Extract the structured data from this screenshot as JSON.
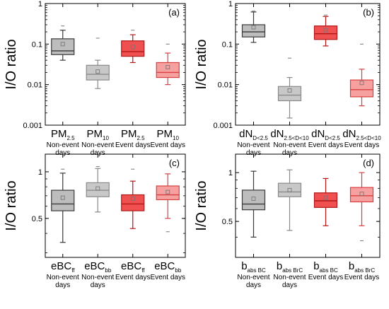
{
  "colors": {
    "gray_dark_fill": "#bdbdbd",
    "gray_dark_stroke": "#3a3a3a",
    "gray_light_fill": "#c8c8c8",
    "gray_light_stroke": "#8a8a8a",
    "red_dark_fill": "#f05050",
    "red_dark_stroke": "#b01818",
    "red_light_fill": "#f6a0a0",
    "red_light_stroke": "#d84040",
    "mean_marker": "#777777"
  },
  "chart_data": [
    {
      "id": "a",
      "type": "box",
      "panel_label": "(a)",
      "ylabel": "I/O ratio",
      "yscale": "log",
      "ylim": [
        0.001,
        1
      ],
      "yticks": [
        {
          "value": 1,
          "label": "1"
        },
        {
          "value": 0.1,
          "label": "0.1"
        },
        {
          "value": 0.01,
          "label": "0.01"
        },
        {
          "value": 0.001,
          "label": "0.001"
        }
      ],
      "boxes": [
        {
          "main": "PM",
          "sub": "2.5",
          "group": [
            "Non-event",
            "days"
          ],
          "style": "gray_dark",
          "whisker_low": 0.04,
          "q1": 0.055,
          "median": 0.068,
          "q3": 0.135,
          "whisker_high": 0.22,
          "mean": 0.1,
          "outlier": 0.28
        },
        {
          "main": "PM",
          "sub": "10",
          "group": [
            "Non-event",
            "days"
          ],
          "style": "gray_light",
          "whisker_low": 0.008,
          "q1": 0.013,
          "median": 0.018,
          "q3": 0.03,
          "whisker_high": 0.04,
          "mean": 0.021,
          "outlier": 0.14
        },
        {
          "main": "PM",
          "sub": "2.5",
          "group": [
            "Event days"
          ],
          "style": "red_dark",
          "whisker_low": 0.035,
          "q1": 0.05,
          "median": 0.065,
          "q3": 0.12,
          "whisker_high": 0.17,
          "mean": 0.085,
          "outlier": 0.22
        },
        {
          "main": "PM",
          "sub": "10",
          "group": [
            "Event days"
          ],
          "style": "red_light",
          "whisker_low": 0.01,
          "q1": 0.015,
          "median": 0.02,
          "q3": 0.035,
          "whisker_high": 0.06,
          "mean": 0.027,
          "outlier": 0.1
        }
      ]
    },
    {
      "id": "b",
      "type": "box",
      "panel_label": "(b)",
      "ylabel": "I/O ratio",
      "yscale": "log",
      "ylim": [
        0.001,
        1
      ],
      "yticks": [
        {
          "value": 1,
          "label": "1"
        },
        {
          "value": 0.1,
          "label": "0.1"
        },
        {
          "value": 0.01,
          "label": "0.01"
        },
        {
          "value": 0.001,
          "label": "0.001"
        }
      ],
      "boxes": [
        {
          "main": "dN",
          "sub": "D<2.5",
          "group": [
            "Non-event",
            "days"
          ],
          "style": "gray_dark",
          "whisker_low": 0.11,
          "q1": 0.15,
          "median": 0.2,
          "q3": 0.3,
          "whisker_high": 0.62,
          "mean": 0.26,
          "outlier": 0.65
        },
        {
          "main": "dN",
          "sub": "2.5<D<10",
          "group": [
            "Non-event",
            "days"
          ],
          "style": "gray_light",
          "whisker_low": 0.0015,
          "q1": 0.004,
          "median": 0.0055,
          "q3": 0.009,
          "whisker_high": 0.015,
          "mean": 0.0072,
          "outlier": 0.045
        },
        {
          "main": "dN",
          "sub": "D<2.5",
          "group": [
            "Event days"
          ],
          "style": "red_dark",
          "whisker_low": 0.09,
          "q1": 0.13,
          "median": 0.18,
          "q3": 0.28,
          "whisker_high": 0.48,
          "mean": 0.22,
          "outlier": 0.52
        },
        {
          "main": "dN",
          "sub": "2.5<D<10",
          "group": [
            "Event days"
          ],
          "style": "red_light",
          "whisker_low": 0.003,
          "q1": 0.005,
          "median": 0.0075,
          "q3": 0.013,
          "whisker_high": 0.024,
          "mean": 0.011,
          "outlier": 0.1
        }
      ]
    },
    {
      "id": "c",
      "type": "box",
      "panel_label": "(c)",
      "ylabel": "I/O ratio",
      "yscale": "log",
      "ylim": [
        0.28,
        1.3
      ],
      "yticks": [
        {
          "value": 1,
          "label": "1"
        },
        {
          "value": 0.5,
          "label": "0.5"
        }
      ],
      "boxes": [
        {
          "main": "eBC",
          "sub": "ff",
          "group": [
            "Non-event",
            "days"
          ],
          "style": "gray_dark",
          "whisker_low": 0.35,
          "q1": 0.56,
          "median": 0.62,
          "q3": 0.76,
          "whisker_high": 0.98,
          "mean": 0.68,
          "outlier": 1.04
        },
        {
          "main": "eBC",
          "sub": "bb",
          "group": [
            "Non-event",
            "days"
          ],
          "style": "gray_light",
          "whisker_low": 0.55,
          "q1": 0.69,
          "median": 0.76,
          "q3": 0.85,
          "whisker_high": 1.05,
          "mean": 0.78,
          "outlier": 1.08
        },
        {
          "main": "eBC",
          "sub": "ff",
          "group": [
            "Event days"
          ],
          "style": "red_dark",
          "whisker_low": 0.43,
          "q1": 0.56,
          "median": 0.62,
          "q3": 0.71,
          "whisker_high": 0.87,
          "mean": 0.67,
          "outlier": 1.04
        },
        {
          "main": "eBC",
          "sub": "bb",
          "group": [
            "Event days"
          ],
          "style": "red_light",
          "whisker_low": 0.5,
          "q1": 0.66,
          "median": 0.71,
          "q3": 0.81,
          "whisker_high": 0.97,
          "mean": 0.74,
          "outlier": 0.41
        }
      ]
    },
    {
      "id": "d",
      "type": "box",
      "panel_label": "(d)",
      "ylabel": "I/O ratio",
      "yscale": "log",
      "ylim": [
        0.3,
        1.3
      ],
      "yticks": [
        {
          "value": 1,
          "label": "1"
        },
        {
          "value": 0.5,
          "label": "0.5"
        }
      ],
      "boxes": [
        {
          "main": "b",
          "sub": "abs BC",
          "group": [
            "Non-event",
            "days"
          ],
          "style": "gray_dark",
          "whisker_low": 0.4,
          "q1": 0.59,
          "median": 0.64,
          "q3": 0.78,
          "whisker_high": 1.02,
          "mean": 0.69,
          "outlier": null
        },
        {
          "main": "b",
          "sub": "abs BrC",
          "group": [
            "Non-event",
            "days"
          ],
          "style": "gray_light",
          "whisker_low": 0.44,
          "q1": 0.71,
          "median": 0.76,
          "q3": 0.86,
          "whisker_high": 1.04,
          "mean": 0.78,
          "outlier": null
        },
        {
          "main": "b",
          "sub": "abs BC",
          "group": [
            "Event days"
          ],
          "style": "red_dark",
          "whisker_low": 0.47,
          "q1": 0.61,
          "median": 0.67,
          "q3": 0.75,
          "whisker_high": 0.92,
          "mean": 0.7,
          "outlier": null
        },
        {
          "main": "b",
          "sub": "abs BrC",
          "group": [
            "Event days"
          ],
          "style": "red_light",
          "whisker_low": 0.47,
          "q1": 0.66,
          "median": 0.72,
          "q3": 0.81,
          "whisker_high": 1.0,
          "mean": 0.74,
          "outlier": 0.38
        }
      ]
    }
  ]
}
